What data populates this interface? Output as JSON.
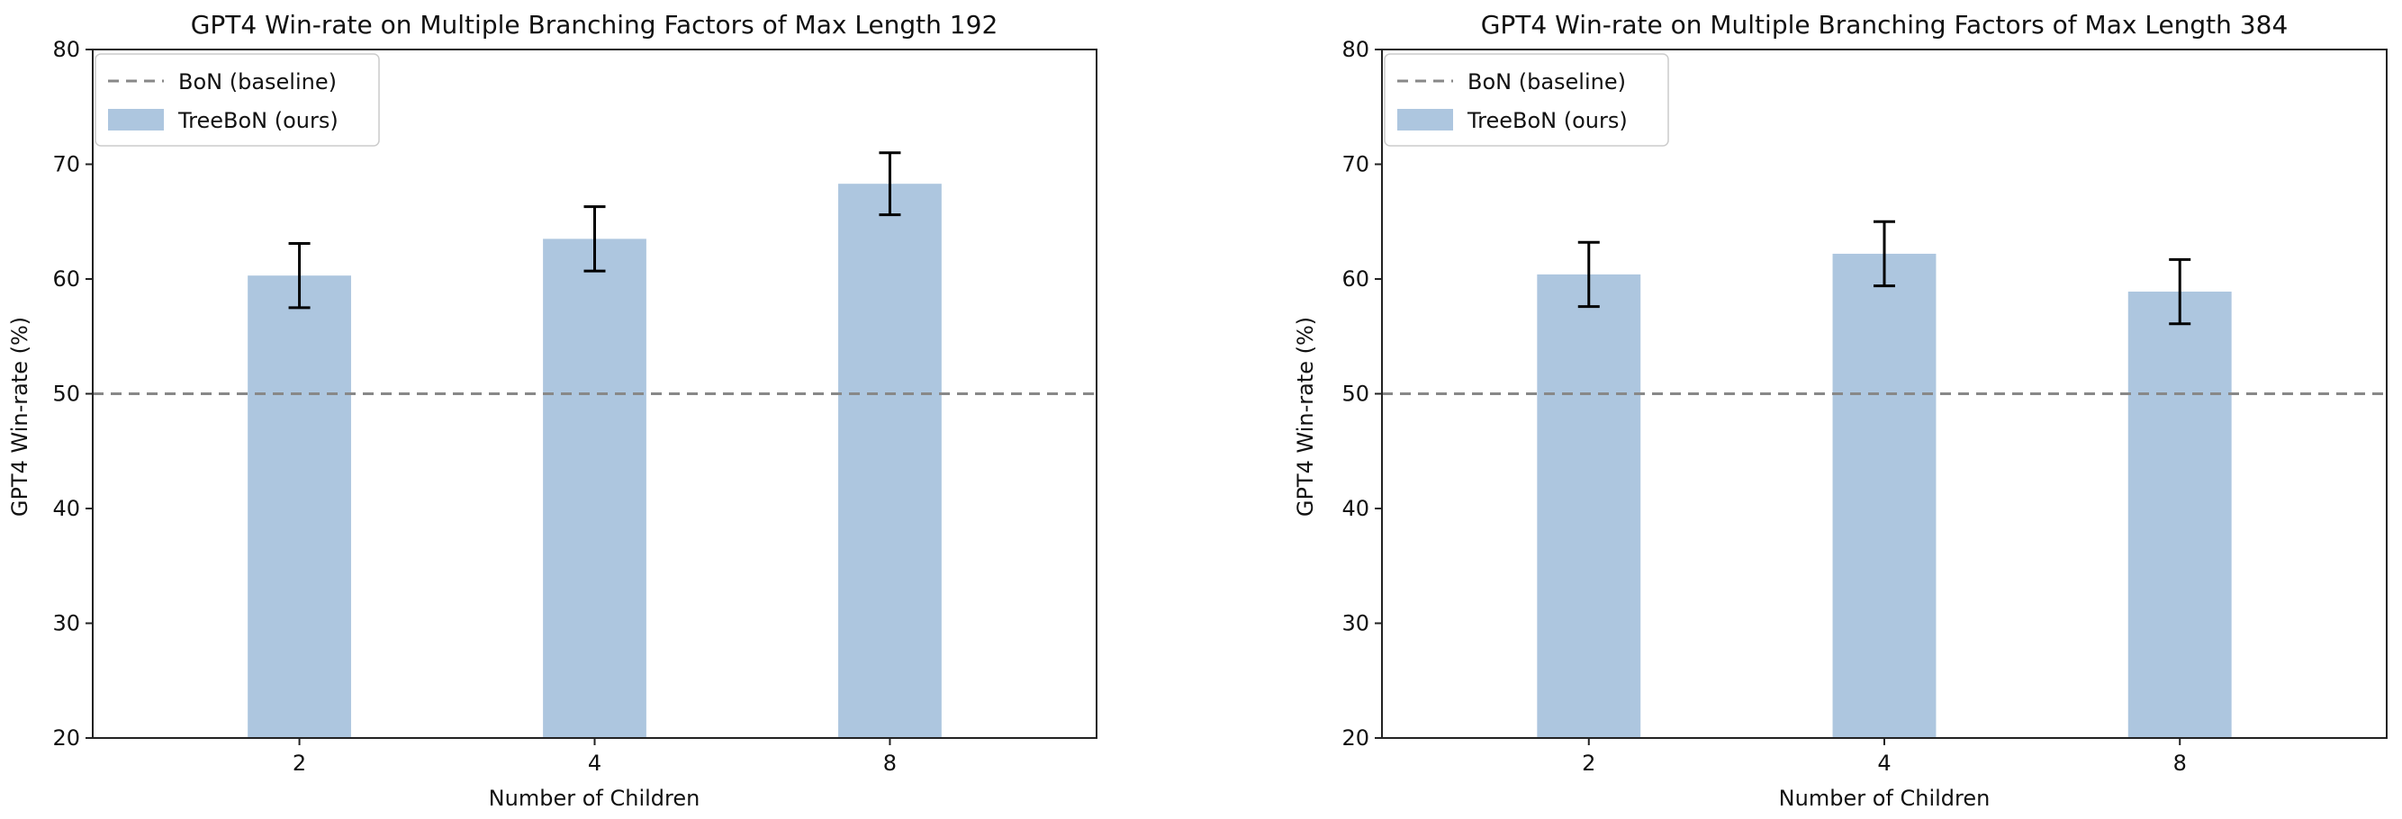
{
  "chart_data": [
    {
      "type": "bar",
      "title": "GPT4 Win-rate on Multiple Branching Factors of Max Length 192",
      "xlabel": "Number of Children",
      "ylabel": "GPT4 Win-rate (%)",
      "categories": [
        "2",
        "4",
        "8"
      ],
      "series": [
        {
          "name": "TreeBoN (ours)",
          "values": [
            60.3,
            63.5,
            68.3
          ],
          "errors": [
            2.8,
            2.8,
            2.7
          ],
          "color": "#adc6df"
        }
      ],
      "baseline": {
        "name": "BoN (baseline)",
        "value": 50,
        "color": "#888888"
      },
      "ylim": [
        20,
        80
      ],
      "yticks": [
        20,
        30,
        40,
        50,
        60,
        70,
        80
      ],
      "legend": "top-left"
    },
    {
      "type": "bar",
      "title": "GPT4 Win-rate on Multiple Branching Factors of Max Length 384",
      "xlabel": "Number of Children",
      "ylabel": "GPT4 Win-rate (%)",
      "categories": [
        "2",
        "4",
        "8"
      ],
      "series": [
        {
          "name": "TreeBoN (ours)",
          "values": [
            60.4,
            62.2,
            58.9
          ],
          "errors": [
            2.8,
            2.8,
            2.8
          ],
          "color": "#adc6df"
        }
      ],
      "baseline": {
        "name": "BoN (baseline)",
        "value": 50,
        "color": "#888888"
      },
      "ylim": [
        20,
        80
      ],
      "yticks": [
        20,
        30,
        40,
        50,
        60,
        70,
        80
      ],
      "legend": "top-left"
    }
  ]
}
